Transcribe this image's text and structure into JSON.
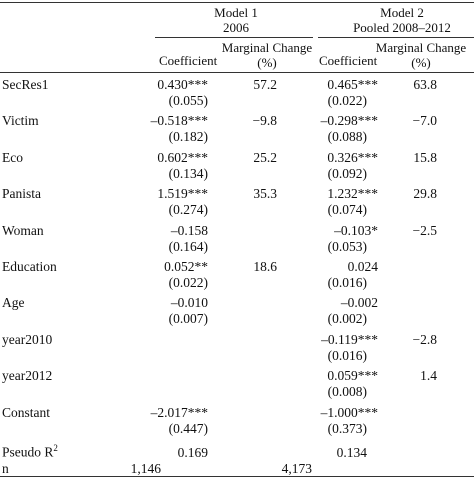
{
  "header": {
    "model1_title": "Model 1",
    "model1_sub": "2006",
    "model2_title": "Model 2",
    "model2_sub": "Pooled 2008–2012",
    "col_coef_1": "Coefficient",
    "col_mc_1_line1": "Marginal Change",
    "col_mc_1_line2": "(%)",
    "col_coef_2": "Coefficient",
    "col_mc_2_line1": "Marginal Change",
    "col_mc_2_line2": "(%)"
  },
  "rows": [
    {
      "label": "SecRes1",
      "m1_coef": "0.430***",
      "m1_se": "(0.055)",
      "m1_mc": "57.2",
      "m2_coef": "0.465***",
      "m2_se": "(0.022)",
      "m2_mc": "63.8"
    },
    {
      "label": "Victim",
      "m1_coef": "–0.518***",
      "m1_se": "(0.182)",
      "m1_mc": "−9.8",
      "m2_coef": "–0.298***",
      "m2_se": "(0.088)",
      "m2_mc": "−7.0"
    },
    {
      "label": "Eco",
      "m1_coef": "0.602***",
      "m1_se": "(0.134)",
      "m1_mc": "25.2",
      "m2_coef": "0.326***",
      "m2_se": "(0.092)",
      "m2_mc": "15.8"
    },
    {
      "label": "Panista",
      "m1_coef": "1.519***",
      "m1_se": "(0.274)",
      "m1_mc": "35.3",
      "m2_coef": "1.232***",
      "m2_se": "(0.074)",
      "m2_mc": "29.8"
    },
    {
      "label": "Woman",
      "m1_coef": "–0.158",
      "m1_se": "(0.164)",
      "m1_mc": "",
      "m2_coef": "–0.103*",
      "m2_se": "(0.053)",
      "m2_mc": "−2.5"
    },
    {
      "label": "Education",
      "m1_coef": "0.052**",
      "m1_se": "(0.022)",
      "m1_mc": "18.6",
      "m2_coef": "0.024",
      "m2_se": "(0.016)",
      "m2_mc": ""
    },
    {
      "label": "Age",
      "m1_coef": "–0.010",
      "m1_se": "(0.007)",
      "m1_mc": "",
      "m2_coef": "–0.002",
      "m2_se": "(0.002)",
      "m2_mc": ""
    },
    {
      "label": "year2010",
      "m1_coef": "",
      "m1_se": "",
      "m1_mc": "",
      "m2_coef": "–0.119***",
      "m2_se": "(0.016)",
      "m2_mc": "−2.8"
    },
    {
      "label": "year2012",
      "m1_coef": "",
      "m1_se": "",
      "m1_mc": "",
      "m2_coef": "0.059***",
      "m2_se": "(0.008)",
      "m2_mc": "1.4"
    },
    {
      "label": "Constant",
      "m1_coef": "–2.017***",
      "m1_se": "(0.447)",
      "m1_mc": "",
      "m2_coef": "–1.000***",
      "m2_se": "(0.373)",
      "m2_mc": ""
    }
  ],
  "pseudo_r2": {
    "label": "Pseudo R",
    "sup": "2",
    "m1": "0.169",
    "m2": "0.134"
  },
  "n_row": {
    "label": "n",
    "m1": "1,146",
    "m2": "4,173"
  }
}
